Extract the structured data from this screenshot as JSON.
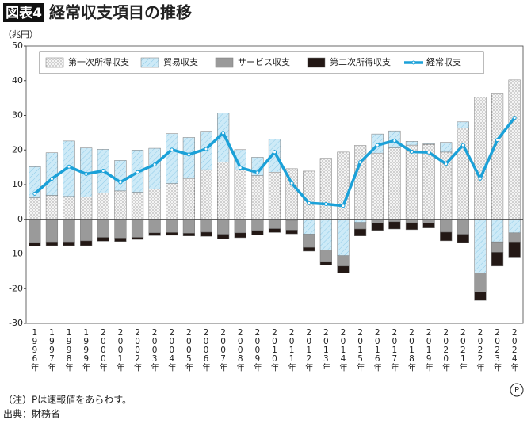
{
  "chart_data": {
    "type": "stacked-bar-line",
    "badge": "図表4",
    "title": "経常収支項目の推移",
    "unit": "（兆円）",
    "categories": [
      "1996年",
      "1997年",
      "1998年",
      "1999年",
      "2000年",
      "2001年",
      "2002年",
      "2003年",
      "2004年",
      "2005年",
      "2006年",
      "2007年",
      "2008年",
      "2009年",
      "2010年",
      "2011年",
      "2012年",
      "2013年",
      "2014年",
      "2015年",
      "2016年",
      "2017年",
      "2018年",
      "2019年",
      "2020年",
      "2021年",
      "2022年",
      "2023年",
      "2024年"
    ],
    "series": [
      {
        "name": "第一次所得収支",
        "color": "#f2f2f2",
        "pattern": "dots",
        "values": [
          6.2,
          6.9,
          6.6,
          6.5,
          7.6,
          8.2,
          7.8,
          8.8,
          10.3,
          11.8,
          14.3,
          16.5,
          14.3,
          12.6,
          13.6,
          14.6,
          13.9,
          17.6,
          19.4,
          21.3,
          19.1,
          20.6,
          21.4,
          21.6,
          19.4,
          26.3,
          35.2,
          36.4,
          40.2
        ]
      },
      {
        "name": "貿易収支",
        "color": "#cdeaf7",
        "pattern": "hatch",
        "values": [
          9.0,
          12.3,
          16.0,
          14.1,
          12.6,
          8.8,
          12.2,
          11.7,
          14.4,
          11.8,
          11.1,
          14.2,
          5.8,
          5.3,
          9.5,
          -0.3,
          -4.3,
          -8.8,
          -10.5,
          -0.9,
          5.5,
          4.9,
          1.1,
          0.2,
          2.8,
          1.8,
          -15.5,
          -6.5,
          -3.9
        ]
      },
      {
        "name": "サービス収支",
        "color": "#9a9a9a",
        "values": [
          -6.7,
          -6.5,
          -6.5,
          -6.2,
          -5.2,
          -5.4,
          -5.2,
          -3.9,
          -3.8,
          -4.0,
          -3.7,
          -4.3,
          -3.9,
          -3.2,
          -2.7,
          -2.8,
          -3.8,
          -3.4,
          -3.0,
          -1.9,
          -1.1,
          -0.7,
          -1.0,
          -1.1,
          -3.7,
          -4.3,
          -5.5,
          -3.0,
          -2.6
        ]
      },
      {
        "name": "第二次所得収支",
        "color": "#231815",
        "values": [
          -1.0,
          -1.1,
          -1.1,
          -1.4,
          -1.1,
          -1.0,
          -0.6,
          -0.8,
          -0.8,
          -0.8,
          -1.2,
          -1.4,
          -1.4,
          -1.3,
          -1.1,
          -1.1,
          -1.1,
          -1.0,
          -2.0,
          -2.0,
          -2.1,
          -2.1,
          -2.0,
          -1.4,
          -2.5,
          -2.4,
          -2.4,
          -4.0,
          -4.4
        ]
      },
      {
        "name": "経常収支",
        "color": "#1ba1d8",
        "kind": "line",
        "values": [
          7.4,
          11.7,
          15.2,
          13.1,
          14.0,
          10.7,
          13.6,
          15.8,
          20.1,
          18.7,
          20.3,
          24.9,
          14.9,
          13.5,
          19.4,
          10.4,
          4.7,
          4.4,
          3.9,
          16.5,
          21.4,
          22.7,
          19.5,
          19.3,
          16.0,
          21.4,
          11.8,
          22.9,
          29.3
        ]
      }
    ],
    "ylim": [
      -30,
      50
    ],
    "yticks": [
      -30,
      -20,
      -10,
      0,
      10,
      20,
      30,
      40,
      50
    ],
    "grid": false,
    "provisional_mark": "P",
    "notes": [
      "（注）Pは速報値をあらわす。",
      "出典：財務省"
    ]
  }
}
